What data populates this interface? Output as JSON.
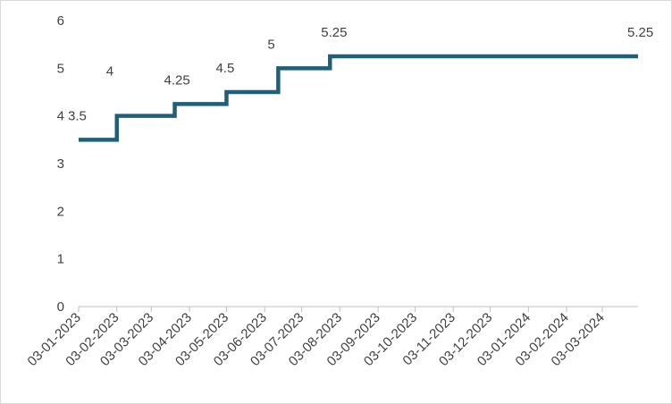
{
  "chart_data": {
    "type": "line",
    "step": true,
    "title": "",
    "xlabel": "",
    "ylabel": "",
    "ylim": [
      0,
      6
    ],
    "yticks": [
      "0",
      "1",
      "2",
      "3",
      "4",
      "5",
      "6"
    ],
    "x_range": [
      "2023-01-03",
      "2024-04-01"
    ],
    "x_tick_labels": [
      "03-01-2023",
      "03-02-2023",
      "03-03-2023",
      "03-04-2023",
      "03-05-2023",
      "03-06-2023",
      "03-07-2023",
      "03-08-2023",
      "03-09-2023",
      "03-10-2023",
      "03-11-2023",
      "03-12-2023",
      "03-01-2024",
      "03-02-2024",
      "03-03-2024"
    ],
    "x_tick_dates": [
      "2023-01-03",
      "2023-02-03",
      "2023-03-03",
      "2023-04-03",
      "2023-05-03",
      "2023-06-03",
      "2023-07-03",
      "2023-08-03",
      "2023-09-03",
      "2023-10-03",
      "2023-11-03",
      "2023-12-03",
      "2024-01-03",
      "2024-02-03",
      "2024-03-03"
    ],
    "grid": false,
    "legend": "none",
    "series": [
      {
        "color": "#1f5f7a",
        "points": [
          {
            "x": "2023-01-03",
            "y": 3.5
          },
          {
            "x": "2023-02-03",
            "y": 4
          },
          {
            "x": "2023-03-22",
            "y": 4.25
          },
          {
            "x": "2023-05-03",
            "y": 4.5
          },
          {
            "x": "2023-06-14",
            "y": 5
          },
          {
            "x": "2023-07-26",
            "y": 5.25
          },
          {
            "x": "2024-04-01",
            "y": 5.25
          }
        ],
        "data_labels": [
          "3.5",
          "4",
          "4.25",
          "4.5",
          "5",
          "5.25",
          "5.25"
        ]
      }
    ]
  }
}
